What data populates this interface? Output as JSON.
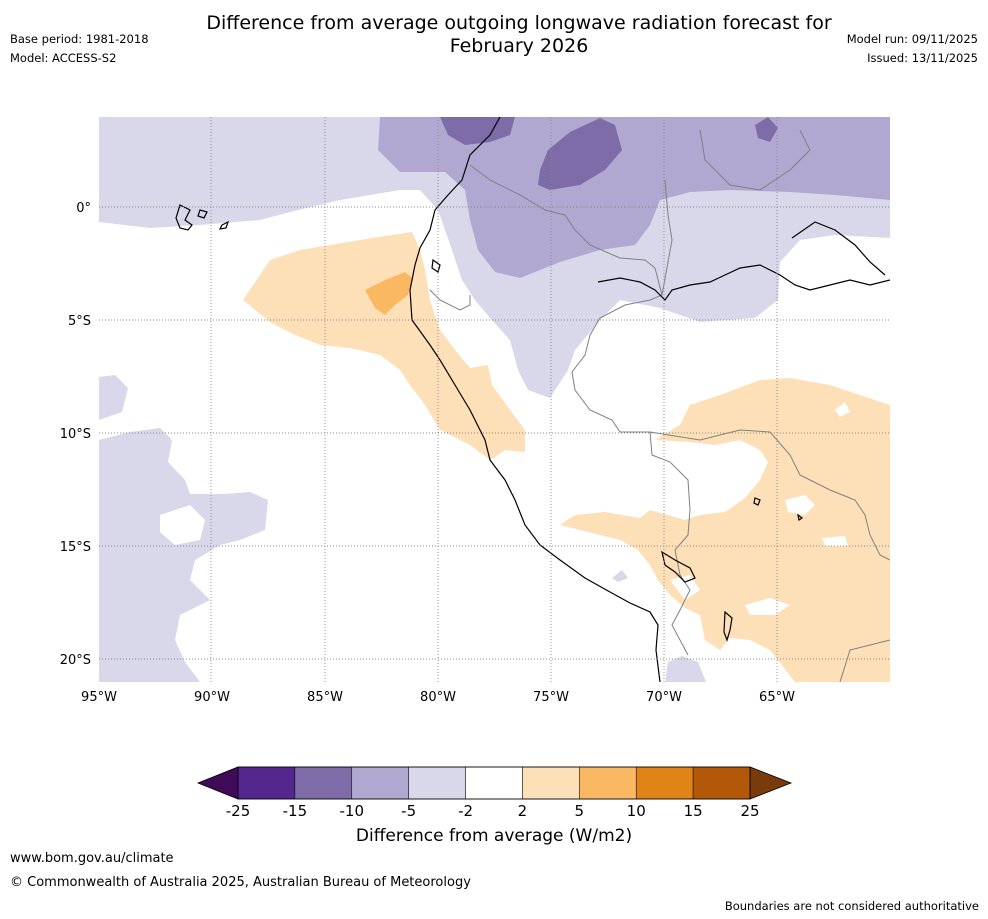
{
  "title": {
    "line1": "Difference from average outgoing longwave radiation forecast for",
    "line2": "February 2026"
  },
  "meta": {
    "base_period": "Base period: 1981-2018",
    "model": "Model: ACCESS-S2",
    "model_run": "Model run: 09/11/2025",
    "issued": "Issued: 13/11/2025"
  },
  "map": {
    "lat_labels": [
      "0°",
      "5°S",
      "10°S",
      "15°S",
      "20°S"
    ],
    "lon_labels": [
      "95°W",
      "90°W",
      "85°W",
      "80°W",
      "75°W",
      "70°W",
      "65°W"
    ],
    "colors": {
      "land_border": "#808080",
      "coast": "#000000",
      "grid": "#888888"
    }
  },
  "colorbar": {
    "title": "Difference from average (W/m2)",
    "ticks": [
      "-25",
      "-15",
      "-10",
      "-5",
      "-2",
      "2",
      "5",
      "10",
      "15",
      "25"
    ],
    "under_color": "#3f0a57",
    "over_color": "#7a3b0b",
    "bins": [
      {
        "color": "#54278f"
      },
      {
        "color": "#7e6ca9"
      },
      {
        "color": "#b0a8d0"
      },
      {
        "color": "#d8d8ea"
      },
      {
        "color": "#ffffff"
      },
      {
        "color": "#fde0b7"
      },
      {
        "color": "#fbb863"
      },
      {
        "color": "#e08417"
      },
      {
        "color": "#b35808"
      }
    ]
  },
  "footer": {
    "url": "www.bom.gov.au/climate",
    "copyright": "© Commonwealth of Australia 2025, Australian Bureau of Meteorology",
    "note": "Boundaries are not considered authoritative"
  }
}
